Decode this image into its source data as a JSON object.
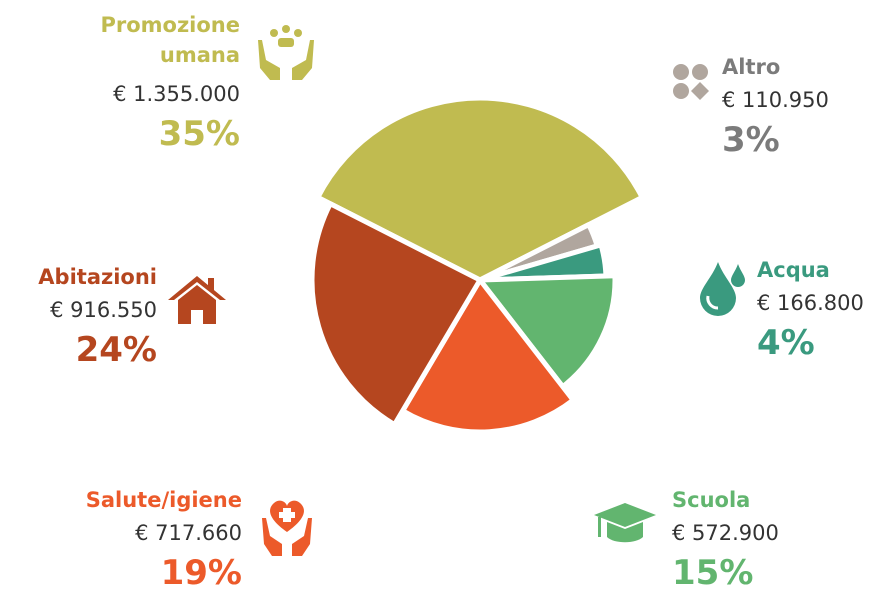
{
  "chart_data": {
    "type": "pie",
    "categories": [
      "Promozione umana",
      "Altro",
      "Acqua",
      "Scuola",
      "Salute/igiene",
      "Abitazioni"
    ],
    "values": [
      35,
      3,
      4,
      15,
      19,
      24
    ],
    "value_labels": [
      "35%",
      "3%",
      "4%",
      "15%",
      "19%",
      "24%"
    ],
    "amount_labels": [
      "€ 1.355.000",
      "€ 110.950",
      "€ 166.800",
      "€ 572.900",
      "€ 717.660",
      "€ 916.550"
    ],
    "colors": [
      "#c0bb50",
      "#b0a69e",
      "#3a9a7f",
      "#62b56f",
      "#ec5a2a",
      "#b5461f"
    ],
    "label_colors": [
      "#c0bb50",
      "#7b7b7b",
      "#3a9a7f",
      "#62b56f",
      "#ec5a2a",
      "#b5461f"
    ]
  }
}
